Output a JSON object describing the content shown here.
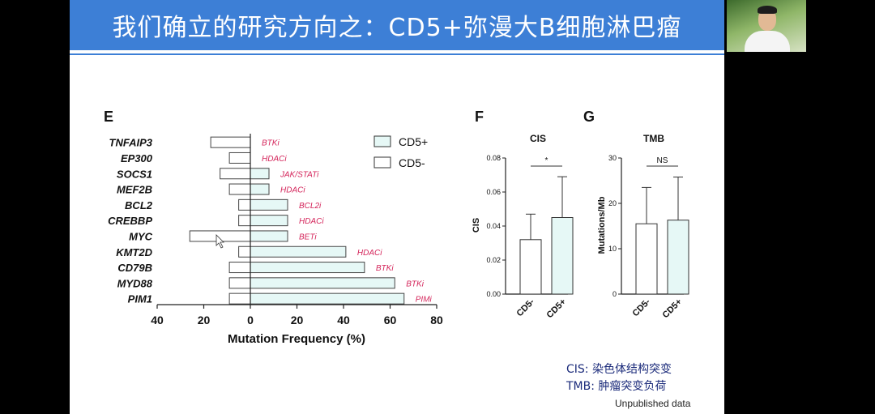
{
  "slide": {
    "title": "我们确立的研究方向之：CD5+弥漫大B细胞淋巴瘤",
    "footnote_cis": "CIS: 染色体结构突变",
    "footnote_tmb": "TMB: 肿瘤突变负荷",
    "unpublished": "Unpublished data"
  },
  "colors": {
    "title_bar": "#3d7fd6",
    "cd5pos_fill": "#e6f8f6",
    "drug_label": "#d4245a"
  },
  "chart_data": [
    {
      "panel": "E",
      "type": "bar",
      "orientation": "horizontal-diverging",
      "xlabel": "Mutation Frequency (%)",
      "ticks": [
        "40",
        "20",
        "0",
        "20",
        "40",
        "60",
        "80"
      ],
      "xlim": [
        -40,
        80
      ],
      "legend": [
        {
          "name": "CD5+",
          "color": "#e6f8f6"
        },
        {
          "name": "CD5-",
          "color": "#ffffff"
        }
      ],
      "categories": [
        "TNFAIP3",
        "EP300",
        "SOCS1",
        "MEF2B",
        "BCL2",
        "CREBBP",
        "MYC",
        "KMT2D",
        "CD79B",
        "MYD88",
        "PIM1"
      ],
      "series": [
        {
          "name": "CD5+",
          "values": [
            0,
            0,
            8,
            8,
            16,
            16,
            16,
            41,
            49,
            62,
            66
          ]
        },
        {
          "name": "CD5-",
          "values": [
            17,
            9,
            13,
            9,
            5,
            5,
            26,
            5,
            9,
            9,
            9
          ]
        }
      ],
      "drug_labels": [
        "BTKi",
        "HDACi",
        "JAK/STATi",
        "HDACi",
        "BCL2i",
        "HDACi",
        "BETi",
        "HDACi",
        "BTKi",
        "BTKi",
        "PIMi"
      ]
    },
    {
      "panel": "F",
      "type": "bar",
      "title": "CIS",
      "ylabel": "CIS",
      "categories": [
        "CD5-",
        "CD5+"
      ],
      "values": [
        0.032,
        0.045
      ],
      "errors": [
        0.015,
        0.024
      ],
      "ylim": [
        0,
        0.08
      ],
      "yticks": [
        "0.00",
        "0.02",
        "0.04",
        "0.06",
        "0.08"
      ],
      "significance": "*"
    },
    {
      "panel": "G",
      "type": "bar",
      "title": "TMB",
      "ylabel": "Mutations/Mb",
      "categories": [
        "CD5-",
        "CD5+"
      ],
      "values": [
        15.5,
        16.3
      ],
      "errors": [
        8,
        9.5
      ],
      "ylim": [
        0,
        30
      ],
      "yticks": [
        "0",
        "10",
        "20",
        "30"
      ],
      "significance": "NS"
    }
  ]
}
